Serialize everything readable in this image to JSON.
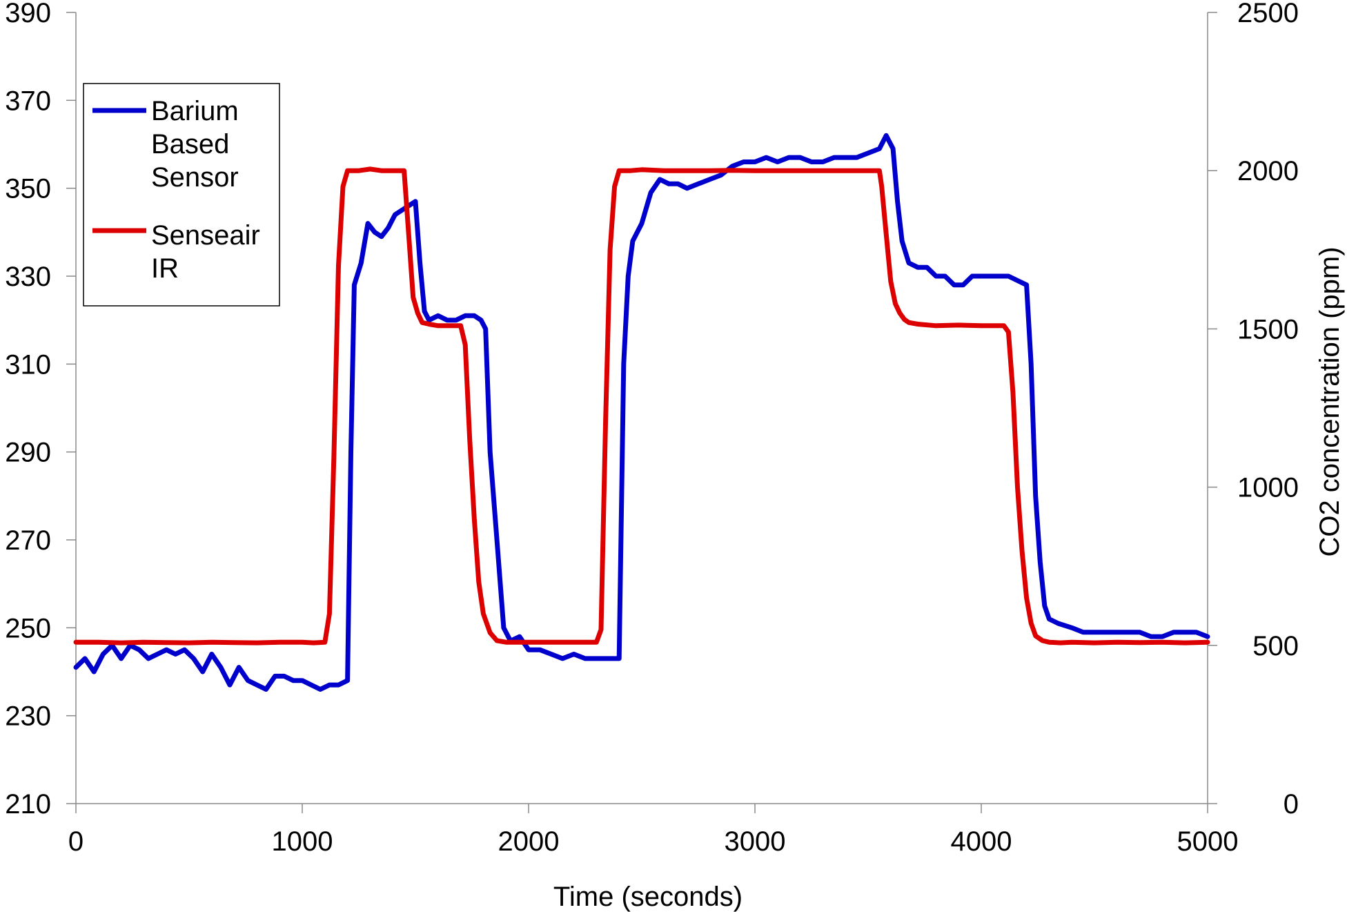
{
  "chart_data": {
    "type": "line",
    "title": "",
    "xlabel": "Time (seconds)",
    "ylabel_left": "",
    "ylabel_right": "CO2 concentration (ppm)",
    "xlim": [
      0,
      5000
    ],
    "ylim_left": [
      210,
      390
    ],
    "ylim_right": [
      0,
      2500
    ],
    "x_ticks": [
      "0",
      "1000",
      "2000",
      "3000",
      "4000",
      "5000"
    ],
    "y_left_ticks": [
      "210",
      "230",
      "250",
      "270",
      "290",
      "310",
      "330",
      "350",
      "370",
      "390"
    ],
    "y_right_ticks": [
      "0",
      "500",
      "1000",
      "1500",
      "2000",
      "2500"
    ],
    "grid": false,
    "legend_position": "top-left",
    "series": [
      {
        "name": "Barium Based Sensor",
        "axis": "left",
        "color": "#0000cc",
        "x": [
          0,
          40,
          80,
          120,
          160,
          200,
          240,
          280,
          320,
          360,
          400,
          440,
          480,
          520,
          560,
          600,
          640,
          680,
          720,
          760,
          800,
          840,
          880,
          920,
          960,
          1000,
          1040,
          1080,
          1120,
          1160,
          1200,
          1215,
          1230,
          1260,
          1290,
          1320,
          1350,
          1380,
          1410,
          1440,
          1470,
          1500,
          1520,
          1540,
          1560,
          1600,
          1640,
          1680,
          1720,
          1760,
          1790,
          1810,
          1830,
          1860,
          1890,
          1920,
          1960,
          2000,
          2050,
          2100,
          2150,
          2200,
          2250,
          2300,
          2350,
          2400,
          2420,
          2440,
          2460,
          2500,
          2540,
          2580,
          2620,
          2660,
          2700,
          2750,
          2800,
          2850,
          2900,
          2950,
          3000,
          3050,
          3100,
          3150,
          3200,
          3250,
          3300,
          3350,
          3400,
          3450,
          3500,
          3550,
          3580,
          3610,
          3630,
          3650,
          3680,
          3720,
          3760,
          3800,
          3840,
          3880,
          3920,
          3960,
          4000,
          4040,
          4080,
          4120,
          4160,
          4200,
          4220,
          4240,
          4260,
          4280,
          4300,
          4340,
          4400,
          4450,
          4500,
          4550,
          4600,
          4650,
          4700,
          4750,
          4800,
          4850,
          4900,
          4950,
          5000
        ],
        "y": [
          241,
          243,
          240,
          244,
          246,
          243,
          246,
          245,
          243,
          244,
          245,
          244,
          245,
          243,
          240,
          244,
          241,
          237,
          241,
          238,
          237,
          236,
          239,
          239,
          238,
          238,
          237,
          236,
          237,
          237,
          238,
          290,
          328,
          333,
          342,
          340,
          339,
          341,
          344,
          345,
          346,
          347,
          333,
          322,
          320,
          321,
          320,
          320,
          321,
          321,
          320,
          318,
          290,
          270,
          250,
          247,
          248,
          245,
          245,
          244,
          243,
          244,
          243,
          243,
          243,
          243,
          310,
          330,
          338,
          342,
          349,
          352,
          351,
          351,
          350,
          351,
          352,
          353,
          355,
          356,
          356,
          357,
          356,
          357,
          357,
          356,
          356,
          357,
          357,
          357,
          358,
          359,
          362,
          359,
          347,
          338,
          333,
          332,
          332,
          330,
          330,
          328,
          328,
          330,
          330,
          330,
          330,
          330,
          329,
          328,
          310,
          280,
          265,
          255,
          252,
          251,
          250,
          249,
          249,
          249,
          249,
          249,
          249,
          248,
          248,
          249,
          249,
          249,
          248
        ]
      },
      {
        "name": "Senseair IR",
        "axis": "right",
        "color": "#dd0000",
        "x": [
          0,
          100,
          200,
          300,
          400,
          500,
          600,
          700,
          800,
          900,
          1000,
          1050,
          1100,
          1120,
          1140,
          1160,
          1180,
          1200,
          1250,
          1300,
          1350,
          1400,
          1450,
          1470,
          1490,
          1510,
          1530,
          1560,
          1600,
          1650,
          1700,
          1720,
          1740,
          1760,
          1780,
          1800,
          1830,
          1860,
          1900,
          1950,
          2000,
          2100,
          2200,
          2300,
          2320,
          2340,
          2360,
          2380,
          2400,
          2450,
          2500,
          2600,
          2700,
          2800,
          2900,
          3000,
          3100,
          3200,
          3300,
          3400,
          3500,
          3550,
          3560,
          3580,
          3600,
          3620,
          3640,
          3660,
          3680,
          3720,
          3800,
          3900,
          4000,
          4100,
          4120,
          4140,
          4160,
          4180,
          4200,
          4220,
          4240,
          4270,
          4300,
          4350,
          4400,
          4500,
          4600,
          4700,
          4800,
          4900,
          5000
        ],
        "y": [
          510,
          510,
          508,
          510,
          509,
          508,
          510,
          509,
          508,
          510,
          510,
          508,
          510,
          600,
          1100,
          1700,
          1950,
          2000,
          2000,
          2005,
          2000,
          2000,
          2000,
          1800,
          1600,
          1550,
          1520,
          1515,
          1510,
          1510,
          1510,
          1450,
          1150,
          900,
          700,
          600,
          540,
          515,
          510,
          510,
          510,
          510,
          510,
          510,
          550,
          1200,
          1750,
          1950,
          2000,
          2000,
          2003,
          2000,
          2000,
          2000,
          2001,
          2000,
          2000,
          2000,
          2000,
          2000,
          2000,
          2000,
          1950,
          1800,
          1650,
          1580,
          1550,
          1530,
          1520,
          1515,
          1510,
          1512,
          1510,
          1510,
          1490,
          1300,
          1000,
          800,
          650,
          570,
          530,
          515,
          510,
          508,
          510,
          508,
          510,
          509,
          510,
          508,
          510
        ]
      }
    ]
  }
}
